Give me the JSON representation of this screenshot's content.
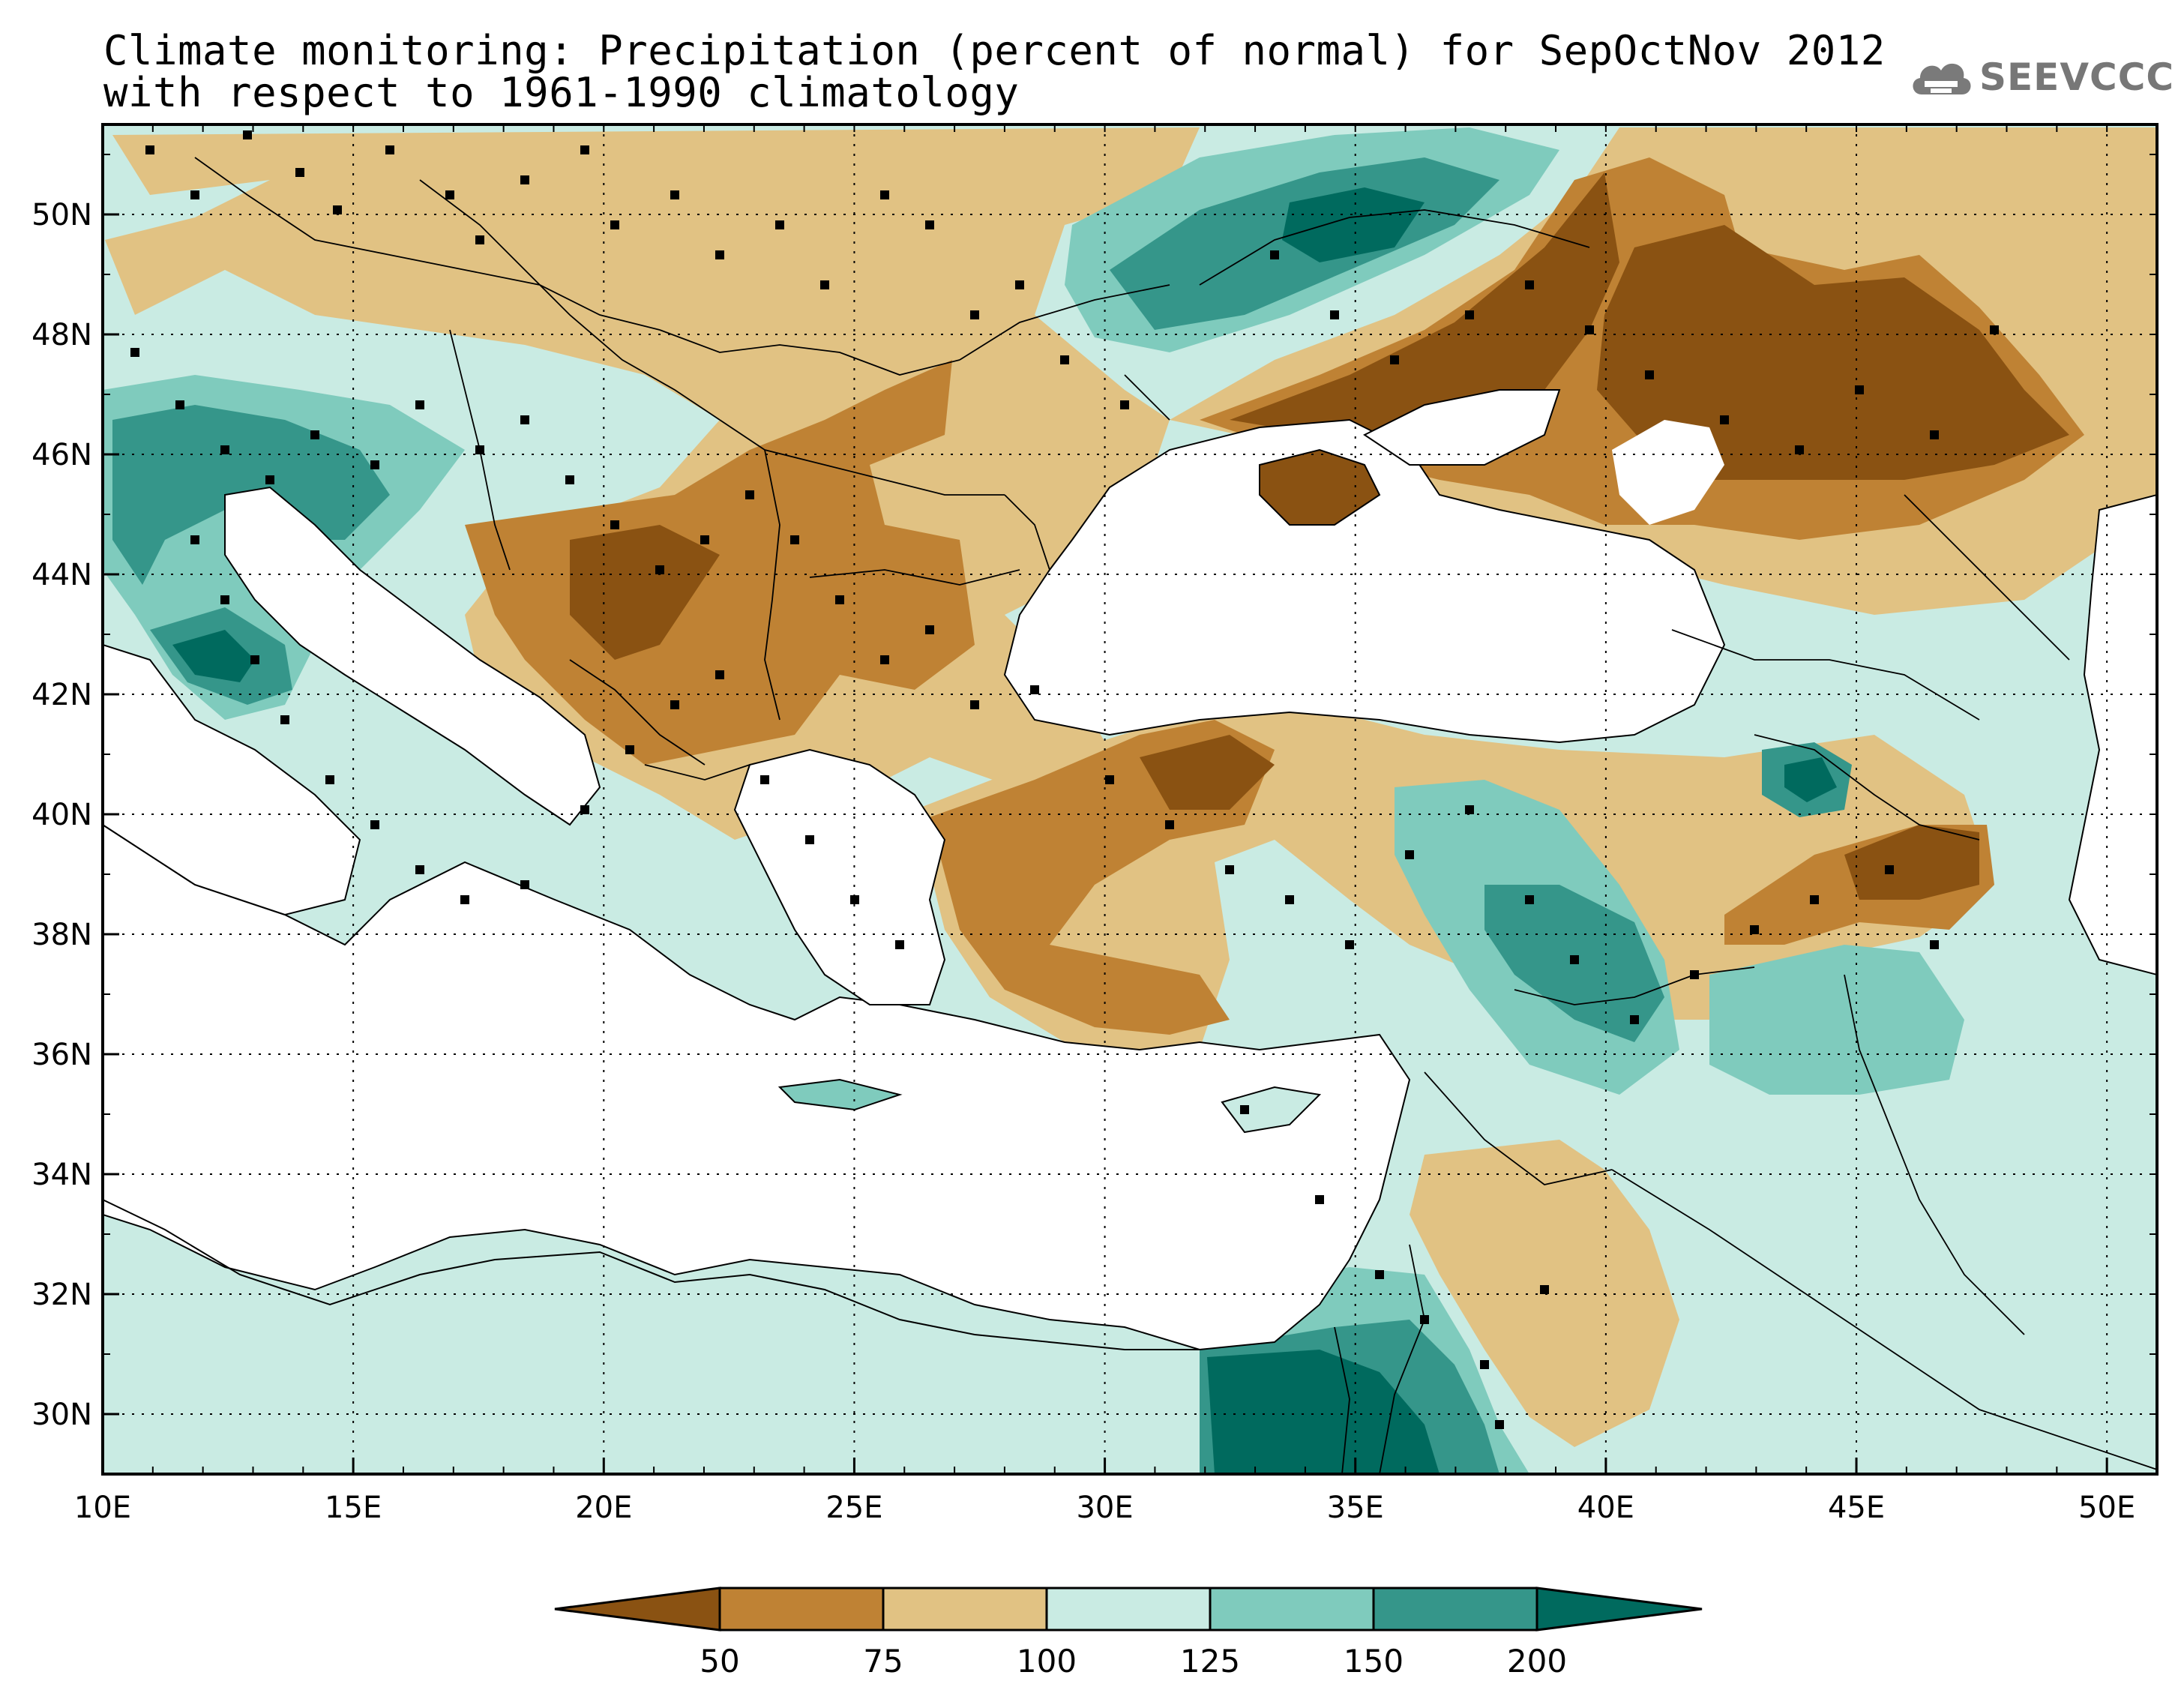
{
  "title": {
    "line1": "Climate monitoring: Precipitation (percent of normal) for SepOctNov 2012",
    "line2": "with respect to 1961-1990 climatology"
  },
  "logo": {
    "text": "SEEVCCC",
    "icon": "cloud-icon"
  },
  "map": {
    "lon_range": [
      10,
      51
    ],
    "lat_range": [
      29,
      51.5
    ],
    "x_ticks": [
      "10E",
      "15E",
      "20E",
      "25E",
      "30E",
      "35E",
      "40E",
      "45E",
      "50E"
    ],
    "y_ticks": [
      "50N",
      "48N",
      "46N",
      "44N",
      "42N",
      "40N",
      "38N",
      "36N",
      "34N",
      "32N",
      "30N"
    ],
    "x_tick_values": [
      10,
      15,
      20,
      25,
      30,
      35,
      40,
      45,
      50
    ],
    "y_tick_values": [
      50,
      48,
      46,
      44,
      42,
      40,
      38,
      36,
      34,
      32,
      30
    ],
    "grid": "dotted"
  },
  "colorbar": {
    "labels": [
      "50",
      "75",
      "100",
      "125",
      "150",
      "200"
    ],
    "colors": [
      "#8a5212",
      "#bf8234",
      "#e1c283",
      "#c9ebe3",
      "#7fcbbd",
      "#35968a",
      "#006a5e"
    ]
  },
  "colors": {
    "land_outline": "#000000",
    "sea": "#ffffff"
  }
}
